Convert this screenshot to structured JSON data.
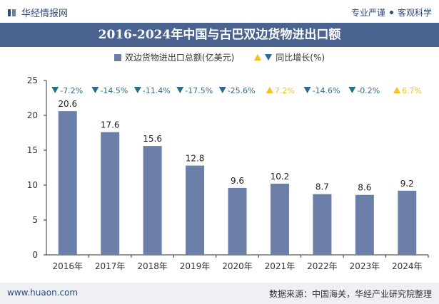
{
  "header": {
    "brand": "华经情报网",
    "slogan_left": "专业严谨",
    "slogan_right": "客观科学"
  },
  "title": "2016-2024年中国与古巴双边货物进出口额",
  "legend": {
    "bar_label": "双边货物进出口总额(亿美元)",
    "growth_label": "同比增长(%)"
  },
  "footer": {
    "website": "www.huaon.com",
    "source": "数据来源：中国海关，华经产业研究院整理"
  },
  "colors": {
    "bar": "#6b7fa8",
    "title_bg": "#4a6391",
    "up": "#f5c21a",
    "down": "#2e6b8c"
  },
  "chart_data": {
    "type": "bar",
    "categories": [
      "2016年",
      "2017年",
      "2018年",
      "2019年",
      "2020年",
      "2021年",
      "2022年",
      "2023年",
      "2024年"
    ],
    "series": [
      {
        "name": "双边货物进出口总额(亿美元)",
        "values": [
          20.6,
          17.6,
          15.6,
          12.8,
          9.6,
          10.2,
          8.7,
          8.6,
          9.2
        ]
      }
    ],
    "growth_labels": [
      "-7.2%",
      "-14.5%",
      "-11.4%",
      "-17.5%",
      "-25.6%",
      "7.2%",
      "-14.6%",
      "-0.2%",
      "6.7%"
    ],
    "growth_direction": [
      "down",
      "down",
      "down",
      "down",
      "down",
      "up",
      "down",
      "down",
      "up"
    ],
    "yticks": [
      "0",
      "5",
      "10",
      "15",
      "20",
      "25"
    ],
    "ylim": [
      0,
      25
    ],
    "legend_position": "top-center",
    "grid": false
  }
}
